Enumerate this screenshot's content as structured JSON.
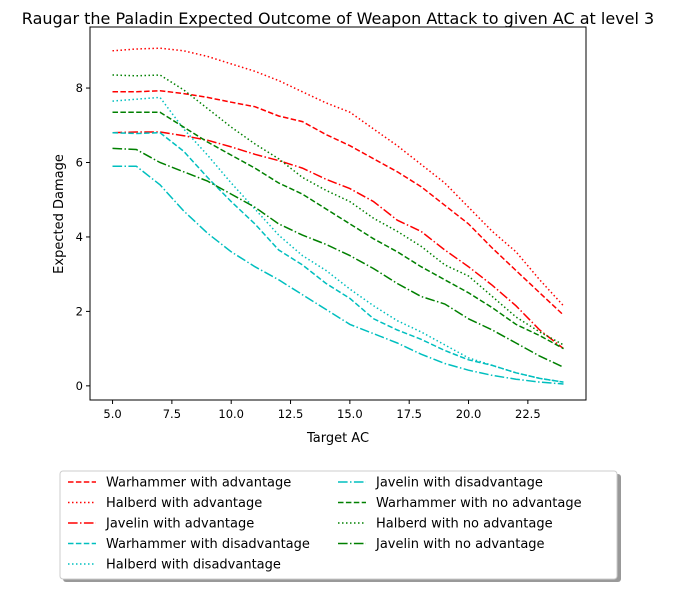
{
  "chart_data": {
    "type": "line",
    "title": "Raugar the Paladin Expected Outcome of Weapon Attack to given AC at level 3",
    "xlabel": "Target AC",
    "ylabel": "Expected Damage",
    "xlim": [
      4.05,
      24.95
    ],
    "ylim": [
      -0.38,
      9.64
    ],
    "xticks": [
      5.0,
      7.5,
      10.0,
      12.5,
      15.0,
      17.5,
      20.0,
      22.5
    ],
    "xtick_labels": [
      "5.0",
      "7.5",
      "10.0",
      "12.5",
      "15.0",
      "17.5",
      "20.0",
      "22.5"
    ],
    "yticks": [
      0,
      2,
      4,
      6,
      8
    ],
    "ytick_labels": [
      "0",
      "2",
      "4",
      "6",
      "8"
    ],
    "grid": false,
    "legend_placement": "below the plot, two columns, with shadow",
    "x": [
      5,
      6,
      7,
      8,
      9,
      10,
      11,
      12,
      13,
      14,
      15,
      16,
      17,
      18,
      19,
      20,
      21,
      22,
      23,
      24
    ],
    "series": [
      {
        "name": "Warhammer with advantage",
        "color": "#ff0000",
        "style": "dashed",
        "values": [
          7.9,
          7.9,
          7.93,
          7.85,
          7.75,
          7.62,
          7.5,
          7.25,
          7.1,
          6.75,
          6.45,
          6.1,
          5.75,
          5.35,
          4.85,
          4.35,
          3.7,
          3.1,
          2.5,
          1.9
        ]
      },
      {
        "name": "Halberd with advantage",
        "color": "#ff0000",
        "style": "dotted",
        "values": [
          9.0,
          9.05,
          9.07,
          9.0,
          8.85,
          8.65,
          8.45,
          8.2,
          7.9,
          7.6,
          7.35,
          6.9,
          6.45,
          5.95,
          5.45,
          4.8,
          4.15,
          3.6,
          2.85,
          2.15
        ]
      },
      {
        "name": "Javelin with advantage",
        "color": "#ff0000",
        "style": "dashdot",
        "values": [
          6.8,
          6.82,
          6.82,
          6.72,
          6.6,
          6.42,
          6.22,
          6.05,
          5.85,
          5.55,
          5.3,
          4.95,
          4.45,
          4.15,
          3.65,
          3.2,
          2.7,
          2.15,
          1.5,
          1.0
        ]
      },
      {
        "name": "Warhammer with disadvantage",
        "color": "#00bfbf",
        "style": "dashed",
        "values": [
          6.8,
          6.78,
          6.8,
          6.3,
          5.6,
          4.95,
          4.35,
          3.65,
          3.25,
          2.75,
          2.35,
          1.8,
          1.5,
          1.25,
          0.95,
          0.7,
          0.55,
          0.35,
          0.2,
          0.1
        ]
      },
      {
        "name": "Halberd with disadvantage",
        "color": "#00bfbf",
        "style": "dotted",
        "values": [
          7.65,
          7.7,
          7.75,
          6.9,
          6.2,
          5.45,
          4.75,
          4.05,
          3.5,
          3.1,
          2.6,
          2.15,
          1.75,
          1.45,
          1.1,
          0.75,
          0.55,
          0.35,
          0.2,
          0.1
        ]
      },
      {
        "name": "Javelin with disadvantage",
        "color": "#00bfbf",
        "style": "dashdot",
        "values": [
          5.9,
          5.9,
          5.4,
          4.7,
          4.1,
          3.6,
          3.2,
          2.85,
          2.45,
          2.05,
          1.65,
          1.4,
          1.15,
          0.85,
          0.6,
          0.42,
          0.28,
          0.18,
          0.1,
          0.05
        ]
      },
      {
        "name": "Warhammer with no advantage",
        "color": "#008000",
        "style": "dashed",
        "values": [
          7.35,
          7.35,
          7.35,
          6.95,
          6.55,
          6.2,
          5.85,
          5.45,
          5.15,
          4.75,
          4.35,
          3.95,
          3.6,
          3.2,
          2.85,
          2.5,
          2.1,
          1.65,
          1.35,
          1.0
        ]
      },
      {
        "name": "Halberd with no advantage",
        "color": "#008000",
        "style": "dotted",
        "values": [
          8.35,
          8.33,
          8.35,
          7.95,
          7.45,
          6.95,
          6.5,
          6.1,
          5.6,
          5.25,
          4.95,
          4.5,
          4.15,
          3.75,
          3.25,
          2.95,
          2.4,
          1.85,
          1.45,
          1.1
        ]
      },
      {
        "name": "Javelin with no advantage",
        "color": "#008000",
        "style": "dashdot",
        "values": [
          6.38,
          6.35,
          6.0,
          5.75,
          5.5,
          5.15,
          4.8,
          4.35,
          4.05,
          3.8,
          3.5,
          3.15,
          2.75,
          2.4,
          2.2,
          1.8,
          1.5,
          1.15,
          0.8,
          0.5
        ]
      }
    ]
  }
}
